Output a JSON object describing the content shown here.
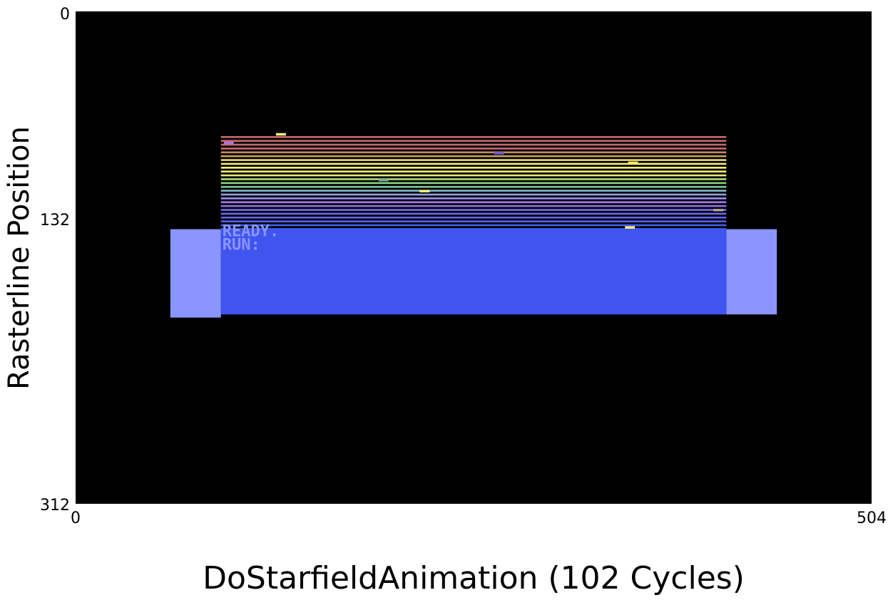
{
  "chart_data": {
    "type": "heatmap",
    "title": "",
    "xlabel": "DoStarfieldAnimation (102 Cycles)",
    "ylabel": "Rasterline Position",
    "xlim": [
      0,
      504
    ],
    "ylim": [
      0,
      312
    ],
    "x_ticks": [
      "0",
      "504"
    ],
    "y_ticks": [
      "0",
      "132",
      "312"
    ],
    "grid": false,
    "background_color": "#000000",
    "regions": [
      {
        "name": "border-left",
        "x0": 60,
        "x1": 92,
        "y0": 138,
        "y1": 194,
        "color": "#8a95ff"
      },
      {
        "name": "border-right",
        "x0": 412,
        "x1": 444,
        "y0": 138,
        "y1": 192,
        "color": "#8a95ff"
      },
      {
        "name": "screen",
        "x0": 92,
        "x1": 412,
        "y0": 138,
        "y1": 192,
        "color": "#4054f0"
      }
    ],
    "raster_bands": {
      "x0": 92,
      "x1": 412,
      "y_start": 79,
      "step": 2.43,
      "thickness": 1.2,
      "colors": [
        "#c46a6a",
        "#c46a6a",
        "#c46a6a",
        "#c46a6a",
        "#c88a5a",
        "#c8a060",
        "#e8d870",
        "#f4ee70",
        "#f4ee70",
        "#f4ee70",
        "#e4e87a",
        "#b6dc78",
        "#8ccf7e",
        "#7cc49a",
        "#86b8c0",
        "#8ca4e0",
        "#9a90f0",
        "#a478f4",
        "#8c70ec",
        "#7a6cf0",
        "#6c6cf0",
        "#5c66f0",
        "#4e62f0",
        "#4460f0",
        "#4060f0",
        "#4060f0"
      ]
    },
    "stars": [
      {
        "x": 130,
        "y": 78,
        "color": "#fff07a"
      },
      {
        "x": 97,
        "y": 83.5,
        "color": "#b070e0"
      },
      {
        "x": 268,
        "y": 90,
        "color": "#6a5ad8"
      },
      {
        "x": 353,
        "y": 96,
        "color": "#f4e86a"
      },
      {
        "x": 195,
        "y": 107,
        "color": "#70b0a0"
      },
      {
        "x": 221,
        "y": 114,
        "color": "#fff07a"
      },
      {
        "x": 407,
        "y": 126,
        "color": "#b0a0a0"
      },
      {
        "x": 351,
        "y": 137,
        "color": "#fff07a"
      }
    ],
    "screen_text": [
      "READY.",
      "RUN:"
    ],
    "text_color": "#8a95ff"
  }
}
